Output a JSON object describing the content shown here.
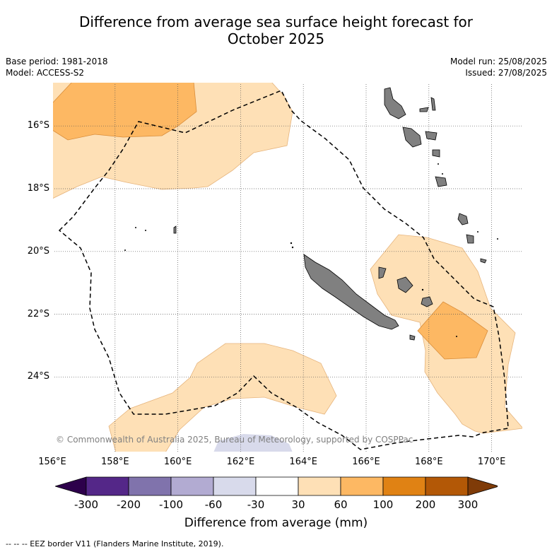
{
  "title_line1": "Difference from average sea surface height forecast for",
  "title_line2": "October 2025",
  "base_period": "Base period: 1981-2018",
  "model": "Model: ACCESS-S2",
  "model_run": "Model run: 25/08/2025",
  "issued": "Issued: 27/08/2025",
  "copyright": "© Commonwealth of Australia 2025, Bureau of Meteorology, supported by COSPPac",
  "map": {
    "lon_ticks": [
      "156°E",
      "158°E",
      "160°E",
      "162°E",
      "164°E",
      "166°E",
      "168°E",
      "170°E"
    ],
    "lat_ticks": [
      "16°S",
      "18°S",
      "20°S",
      "22°S",
      "24°S"
    ],
    "lon_range": [
      156,
      171
    ],
    "lat_range": [
      -26.4,
      -14.6
    ],
    "grid": true
  },
  "colorbar": {
    "labels": [
      "-300",
      "-200",
      "-100",
      "-60",
      "-30",
      "30",
      "60",
      "100",
      "200",
      "300"
    ],
    "colors": [
      "#2d004b",
      "#542788",
      "#8073ac",
      "#b2abd2",
      "#d8daeb",
      "#ffffff",
      "#fee0b6",
      "#fdb863",
      "#e08214",
      "#b35806",
      "#7f3b08"
    ],
    "title": "Difference from average (mm)"
  },
  "colors": {
    "land": "#808080",
    "ocean": "#ffffff"
  },
  "footer": "-- -- -- EEZ border V11 (Flanders Marine Institute, 2019)."
}
